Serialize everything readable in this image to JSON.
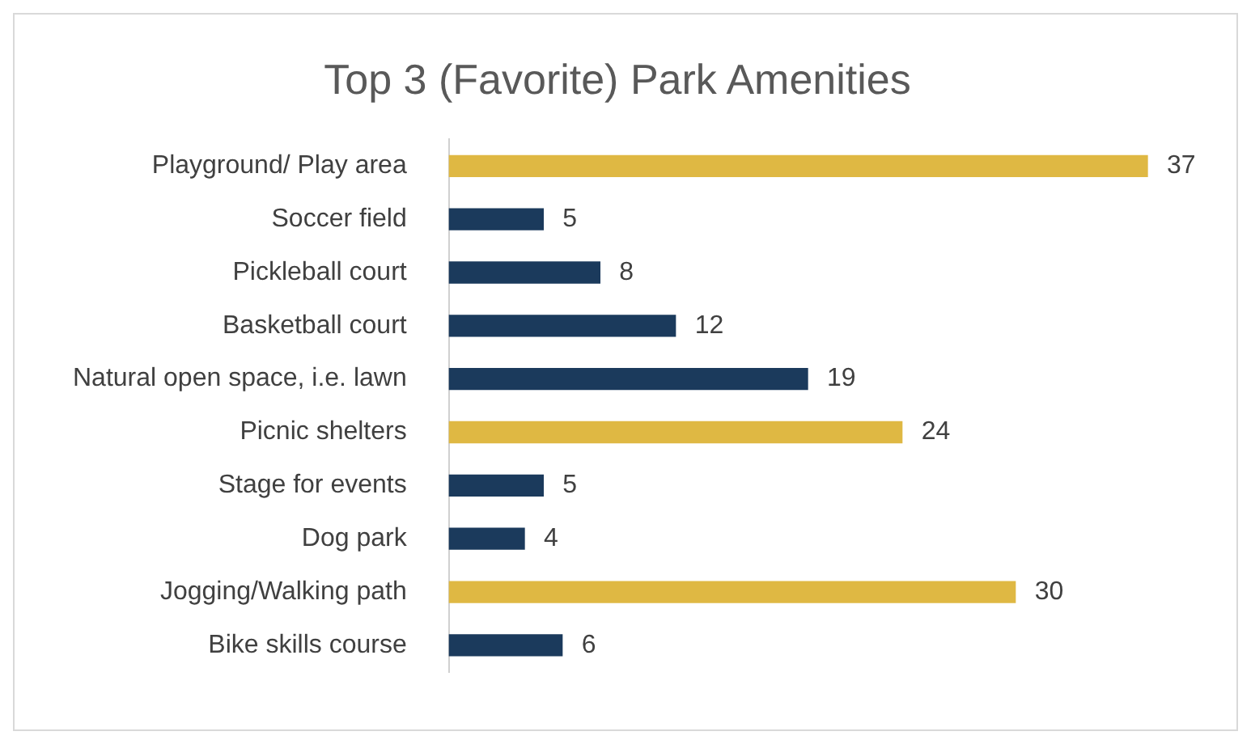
{
  "chart_data": {
    "type": "bar",
    "orientation": "horizontal",
    "title": "Top 3 (Favorite) Park Amenities",
    "categories": [
      "Playground/ Play area",
      "Soccer field",
      "Pickleball court",
      "Basketball court",
      "Natural open space, i.e. lawn",
      "Picnic shelters",
      "Stage for events",
      "Dog park",
      "Jogging/Walking path",
      "Bike skills course"
    ],
    "values": [
      37,
      5,
      8,
      12,
      19,
      24,
      5,
      4,
      30,
      6
    ],
    "colors": [
      "#dfb843",
      "#1b3a5c",
      "#1b3a5c",
      "#1b3a5c",
      "#1b3a5c",
      "#dfb843",
      "#1b3a5c",
      "#1b3a5c",
      "#dfb843",
      "#1b3a5c"
    ],
    "data_labels": true,
    "grid": false,
    "legend": false
  }
}
